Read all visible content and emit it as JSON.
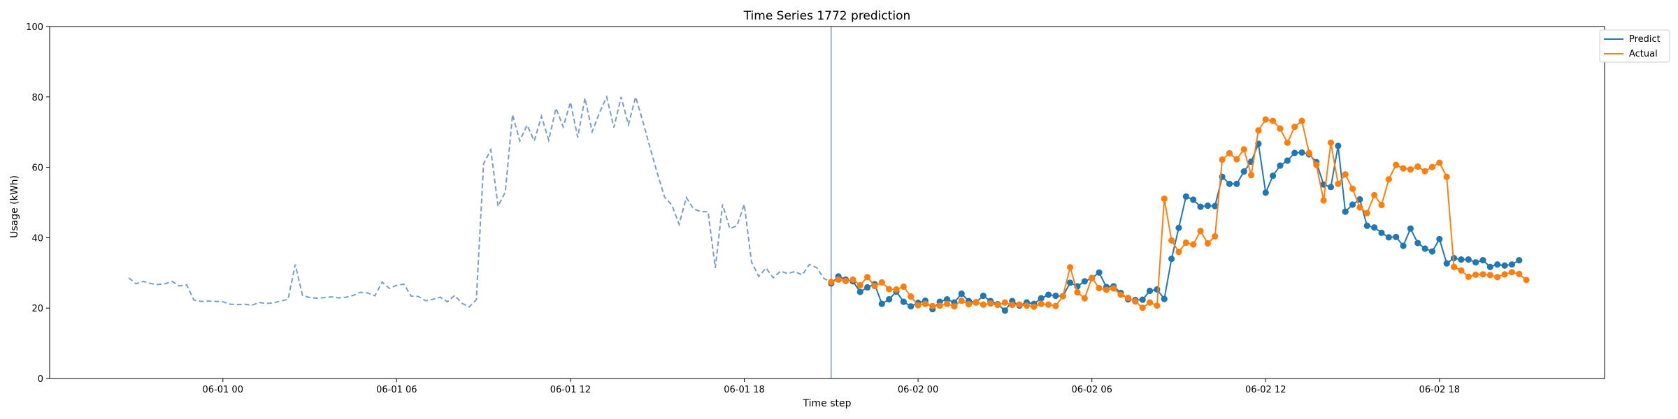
{
  "chart_data": {
    "type": "line",
    "title": "Time Series 1772 prediction",
    "xlabel": "Time step",
    "ylabel": "Usage (kWh)",
    "xlim": [
      -74.5,
      1267.5
    ],
    "ylim": [
      0,
      100
    ],
    "yticks": [
      0,
      20,
      40,
      60,
      80,
      100
    ],
    "xticks": [
      {
        "x": 75,
        "label": "06-01 00"
      },
      {
        "x": 225,
        "label": "06-01 06"
      },
      {
        "x": 375,
        "label": "06-01 12"
      },
      {
        "x": 525,
        "label": "06-01 18"
      },
      {
        "x": 675,
        "label": "06-02 00"
      },
      {
        "x": 825,
        "label": "06-02 06"
      },
      {
        "x": 975,
        "label": "06-02 12"
      },
      {
        "x": 1125,
        "label": "06-02 18"
      }
    ],
    "x_step": 6.25,
    "forecast_start_x": 600,
    "legend": {
      "position": "upper-right-outside",
      "entries": [
        "Predict",
        "Actual"
      ]
    },
    "colors": {
      "predict": "#1f77b4",
      "actual": "#ff7f0e",
      "history": "#7a9cc6",
      "divider": "#7a9cc6"
    },
    "series": [
      {
        "role": "history",
        "x_start": -6.25,
        "values": [
          28.6,
          26.9,
          27.6,
          27.0,
          26.7,
          26.9,
          27.6,
          26.3,
          26.6,
          22.3,
          21.9,
          22.0,
          21.9,
          21.8,
          21.1,
          21.0,
          21.1,
          20.8,
          21.6,
          21.3,
          21.5,
          22.0,
          22.5,
          32.4,
          23.6,
          23.0,
          22.8,
          23.0,
          23.2,
          22.9,
          23.1,
          23.6,
          24.5,
          24.3,
          23.5,
          27.4,
          25.6,
          26.5,
          26.8,
          23.4,
          23.3,
          22.1,
          22.5,
          23.1,
          21.8,
          23.6,
          21.4,
          20.3,
          22.4,
          61.0,
          65.0,
          48.9,
          53.0,
          75.0,
          67.5,
          72.0,
          67.5,
          74.5,
          67.7,
          76.8,
          71.5,
          78.5,
          68.5,
          79.7,
          70.1,
          75.5,
          80.0,
          71.3,
          80.0,
          72.1,
          80.0,
          73.0,
          65.5,
          58.3,
          51.5,
          49.3,
          43.8,
          51.4,
          48.2,
          47.4,
          47.4,
          31.4,
          49.5,
          42.6,
          43.4,
          49.5,
          33.1,
          29.0,
          31.4,
          28.6,
          30.5,
          29.8,
          30.4,
          29.4,
          32.4,
          31.5,
          28.4,
          27.4
        ]
      },
      {
        "name": "Predict",
        "x_start": 600,
        "values": [
          27.0,
          29.0,
          28.1,
          27.6,
          24.6,
          25.9,
          26.8,
          21.2,
          22.5,
          24.7,
          21.8,
          20.5,
          21.5,
          22.1,
          19.7,
          21.8,
          22.5,
          21.6,
          24.1,
          22.0,
          21.6,
          23.5,
          22.0,
          21.1,
          19.3,
          22.0,
          20.7,
          21.6,
          21.2,
          22.8,
          23.8,
          23.5,
          23.4,
          27.2,
          26.2,
          27.6,
          28.5,
          30.1,
          26.0,
          26.2,
          24.3,
          22.5,
          22.3,
          22.4,
          24.9,
          25.3,
          22.6,
          34.0,
          42.8,
          51.7,
          50.8,
          48.8,
          49.1,
          49.0,
          57.3,
          55.3,
          55.3,
          58.8,
          61.6,
          66.7,
          52.8,
          57.6,
          60.5,
          61.9,
          64.1,
          64.2,
          63.7,
          61.5,
          55.1,
          54.4,
          66.1,
          47.4,
          49.4,
          50.9,
          43.4,
          42.9,
          41.4,
          40.1,
          40.2,
          37.7,
          42.6,
          38.5,
          36.9,
          36.1,
          39.6,
          32.7,
          34.2,
          33.8,
          33.8,
          33.0,
          33.6,
          31.7,
          32.4,
          32.1,
          32.4,
          33.6
        ]
      },
      {
        "name": "Actual",
        "x_start": 600,
        "values": [
          27.4,
          28.1,
          27.7,
          28.1,
          26.5,
          28.8,
          26.3,
          27.3,
          25.4,
          25.3,
          26.1,
          23.3,
          20.8,
          21.2,
          20.6,
          20.7,
          21.2,
          20.5,
          22.1,
          21.1,
          21.7,
          21.0,
          21.3,
          20.9,
          21.6,
          20.9,
          21.0,
          20.7,
          20.4,
          21.2,
          21.0,
          20.6,
          23.4,
          31.6,
          24.5,
          22.8,
          28.6,
          25.7,
          25.2,
          25.6,
          23.8,
          22.9,
          21.9,
          20.1,
          21.6,
          20.7,
          51.1,
          39.2,
          36.0,
          38.6,
          38.1,
          41.9,
          38.4,
          40.4,
          62.2,
          64.0,
          62.3,
          65.1,
          57.8,
          70.5,
          73.6,
          73.2,
          71.0,
          67.0,
          71.5,
          73.2,
          64.1,
          60.7,
          50.6,
          67.0,
          55.3,
          58.0,
          53.9,
          48.6,
          47.0,
          52.1,
          49.3,
          56.6,
          60.7,
          59.7,
          59.4,
          60.2,
          58.9,
          60.1,
          61.3,
          57.3,
          31.7,
          30.7,
          28.9,
          29.5,
          29.6,
          29.4,
          28.8,
          29.6,
          30.2,
          29.7,
          28.0
        ]
      }
    ]
  }
}
